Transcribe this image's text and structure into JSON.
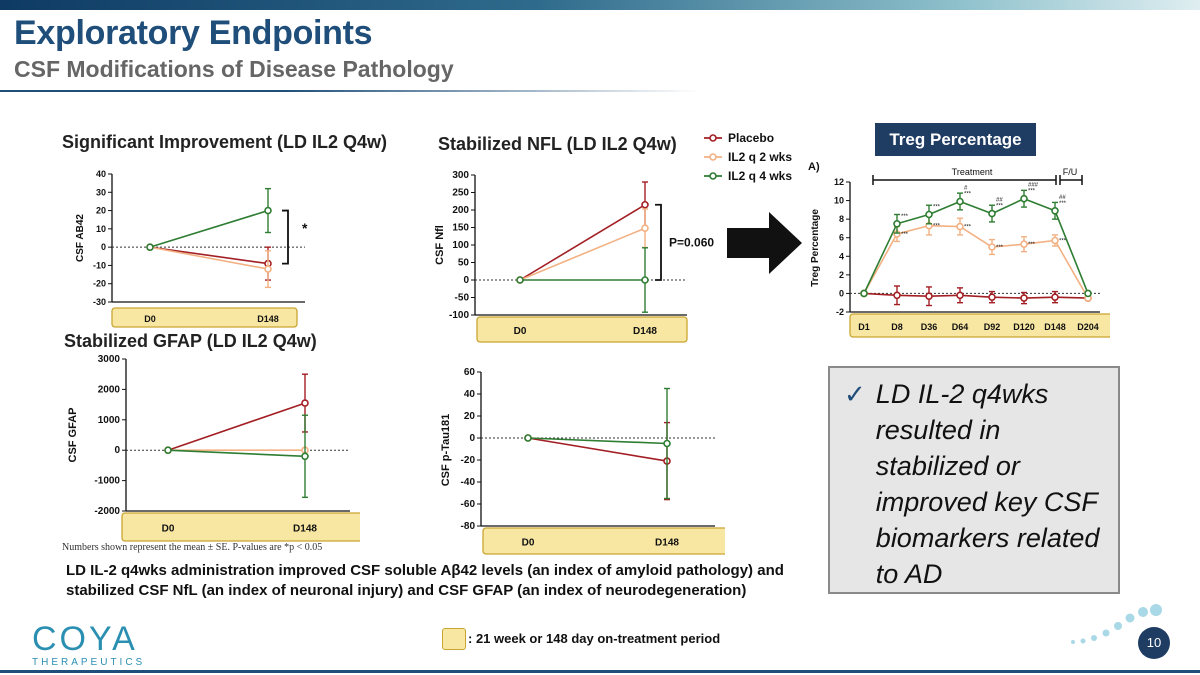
{
  "slide": {
    "title": "Exploratory Endpoints",
    "subtitle": "CSF Modifications of Disease Pathology",
    "page_number": "10",
    "footnote": "Numbers shown represent the mean ± SE. P-values are *p < 0.05",
    "summary": "LD IL-2 q4wks administration improved CSF soluble Aβ42 levels (an index of amyloid pathology) and stabilized CSF NfL (an index of neuronal injury) and CSF GFAP (an index of neurodegeneration)",
    "period_legend": ": 21 week or 148 day on-treatment period",
    "treg_box_label": "Treg Percentage",
    "conclusion": "LD IL-2 q4wks resulted in stabilized or improved key CSF biomarkers related to AD",
    "logo_word": "COYA",
    "logo_sub": "THERAPEUTICS",
    "colors": {
      "placebo": "#a31f24",
      "q2": "#f3b183",
      "q4": "#2e7d32",
      "period": "#f8e7a2",
      "navy": "#1f3c63"
    }
  },
  "legend": [
    {
      "label": "Placebo",
      "color": "#a31f24"
    },
    {
      "label": "IL2 q 2 wks",
      "color": "#f3b183"
    },
    {
      "label": "IL2 q 4 wks",
      "color": "#2e7d32"
    }
  ],
  "chart_data": [
    {
      "type": "line",
      "title": "Significant Improvement (LD IL2 Q4w)",
      "ylabel": "CSF AB42",
      "categories": [
        "D0",
        "D148"
      ],
      "ylim": [
        -30,
        40
      ],
      "yticks": [
        -30,
        -20,
        -10,
        0,
        10,
        20,
        30,
        40
      ],
      "series": [
        {
          "name": "Placebo",
          "values": [
            0,
            -9
          ],
          "err": [
            0,
            9
          ]
        },
        {
          "name": "IL2 q 2 wks",
          "values": [
            0,
            -12
          ],
          "err": [
            0,
            10
          ]
        },
        {
          "name": "IL2 q 4 wks",
          "values": [
            0,
            20
          ],
          "err": [
            0,
            12
          ]
        }
      ],
      "annotation": "*"
    },
    {
      "type": "line",
      "title": "Stabilized NFL (LD IL2 Q4w)",
      "ylabel": "CSF Nfl",
      "categories": [
        "D0",
        "D148"
      ],
      "ylim": [
        -100,
        300
      ],
      "yticks": [
        -100,
        -50,
        0,
        50,
        100,
        150,
        200,
        250,
        300
      ],
      "series": [
        {
          "name": "Placebo",
          "values": [
            0,
            215
          ],
          "err": [
            0,
            65
          ]
        },
        {
          "name": "IL2 q 2 wks",
          "values": [
            0,
            148
          ],
          "err": [
            0,
            55
          ]
        },
        {
          "name": "IL2 q 4 wks",
          "values": [
            0,
            0
          ],
          "err": [
            0,
            92
          ]
        }
      ],
      "annotation": "P=0.060"
    },
    {
      "type": "line",
      "title": "Stabilized GFAP (LD IL2 Q4w)",
      "ylabel": "CSF GFAP",
      "categories": [
        "D0",
        "D148"
      ],
      "ylim": [
        -2000,
        3000
      ],
      "yticks": [
        -2000,
        -1000,
        0,
        1000,
        2000,
        3000
      ],
      "ytick_labels": [
        "-2000",
        "-1000",
        "0",
        "1000",
        "2000",
        "3000"
      ],
      "series": [
        {
          "name": "Placebo",
          "values": [
            0,
            1550
          ],
          "err": [
            0,
            950
          ]
        },
        {
          "name": "IL2 q 2 wks",
          "values": [
            0,
            0
          ],
          "err": [
            0,
            0
          ]
        },
        {
          "name": "IL2 q 4 wks",
          "values": [
            0,
            -200
          ],
          "err": [
            0,
            1350
          ]
        }
      ]
    },
    {
      "type": "line",
      "title": "",
      "ylabel": "CSF p-Tau181",
      "categories": [
        "D0",
        "D148"
      ],
      "ylim": [
        -80,
        60
      ],
      "yticks": [
        -80,
        -60,
        -40,
        -20,
        0,
        20,
        40,
        60
      ],
      "series": [
        {
          "name": "Placebo",
          "values": [
            0,
            -21
          ],
          "err": [
            0,
            35
          ]
        },
        {
          "name": "IL2 q 4 wks",
          "values": [
            0,
            -5
          ],
          "err": [
            0,
            50
          ]
        }
      ]
    },
    {
      "type": "line",
      "title": "A)",
      "ylabel": "Treg Percentage",
      "categories": [
        "D1",
        "D8",
        "D36",
        "D64",
        "D92",
        "D120",
        "D148",
        "D204"
      ],
      "ylim": [
        -2,
        12
      ],
      "yticks": [
        -2,
        0,
        2,
        4,
        6,
        8,
        10,
        12
      ],
      "bracket_labels": [
        "Treatment",
        "F/U"
      ],
      "series": [
        {
          "name": "Placebo",
          "values": [
            0,
            -0.2,
            -0.3,
            -0.2,
            -0.4,
            -0.5,
            -0.4,
            -0.5
          ],
          "err": [
            0,
            1,
            1,
            0.8,
            0.6,
            0.6,
            0.6,
            0.2
          ]
        },
        {
          "name": "IL2 q 2 wks",
          "values": [
            0,
            6.4,
            7.3,
            7.2,
            5.0,
            5.3,
            5.7,
            -0.5
          ],
          "err": [
            0,
            0.8,
            1,
            0.9,
            0.8,
            0.8,
            0.6,
            0.2
          ]
        },
        {
          "name": "IL2 q 4 wks",
          "values": [
            0,
            7.5,
            8.5,
            9.9,
            8.6,
            10.2,
            8.9,
            0
          ],
          "err": [
            0,
            1,
            1,
            0.9,
            0.9,
            0.9,
            0.9,
            0.2
          ]
        }
      ],
      "stars_q4": [
        "",
        "***",
        "***",
        "#\n***",
        "##\n***",
        "###\n***",
        "##\n***",
        ""
      ],
      "stars_q2": [
        "",
        "***",
        "***",
        "***",
        "***",
        "***",
        "***",
        ""
      ]
    }
  ]
}
